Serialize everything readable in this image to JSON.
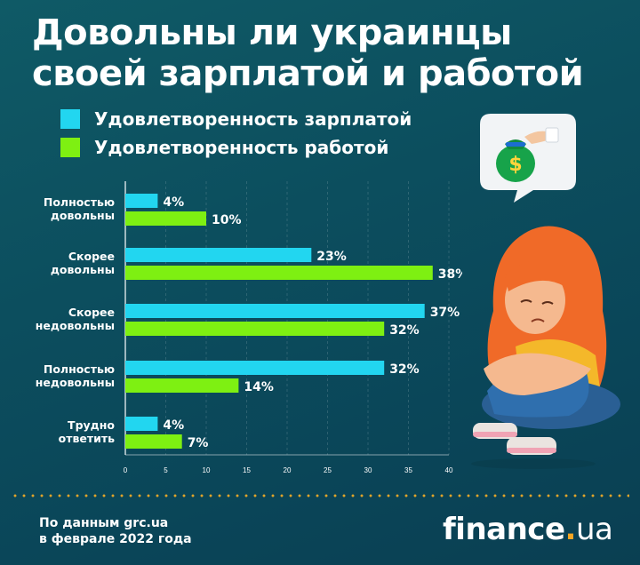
{
  "title": "Довольны ли украинцы своей зарплатой и работой",
  "legend": [
    {
      "label": "Удовлетворенность зарплатой",
      "color": "#22d6f0"
    },
    {
      "label": "Удовлетворенность работой",
      "color": "#7ef012"
    }
  ],
  "chart_data": {
    "type": "bar",
    "orientation": "horizontal",
    "categories": [
      [
        "Полностью",
        "довольны"
      ],
      [
        "Скорее",
        "довольны"
      ],
      [
        "Скорее",
        "недовольны"
      ],
      [
        "Полностью",
        "недовольны"
      ],
      [
        "Трудно",
        "ответить"
      ]
    ],
    "series": [
      {
        "name": "Удовлетворенность зарплатой",
        "color": "#22d6f0",
        "values": [
          4,
          23,
          37,
          32,
          4
        ],
        "labels": [
          "4%",
          "23%",
          "37%",
          "32%",
          "4%"
        ]
      },
      {
        "name": "Удовлетворенность работой",
        "color": "#7ef012",
        "values": [
          10,
          38,
          32,
          14,
          7
        ],
        "labels": [
          "10%",
          "38%",
          "32%",
          "14%",
          "7%"
        ]
      }
    ],
    "xlim": [
      0,
      40
    ],
    "xticks": [
      "0",
      "5",
      "10",
      "15",
      "20",
      "25",
      "30",
      "35",
      "40"
    ],
    "grid": true,
    "legend_position": "top"
  },
  "source": {
    "line1": "По данным grc.ua",
    "line2": "в феврале 2022 года"
  },
  "logo": {
    "name": "finance",
    "dot": ".",
    "tld": "ua"
  },
  "icons": {
    "bubble": "money-bag-icon",
    "illustration": "sad-girl-illustration"
  }
}
